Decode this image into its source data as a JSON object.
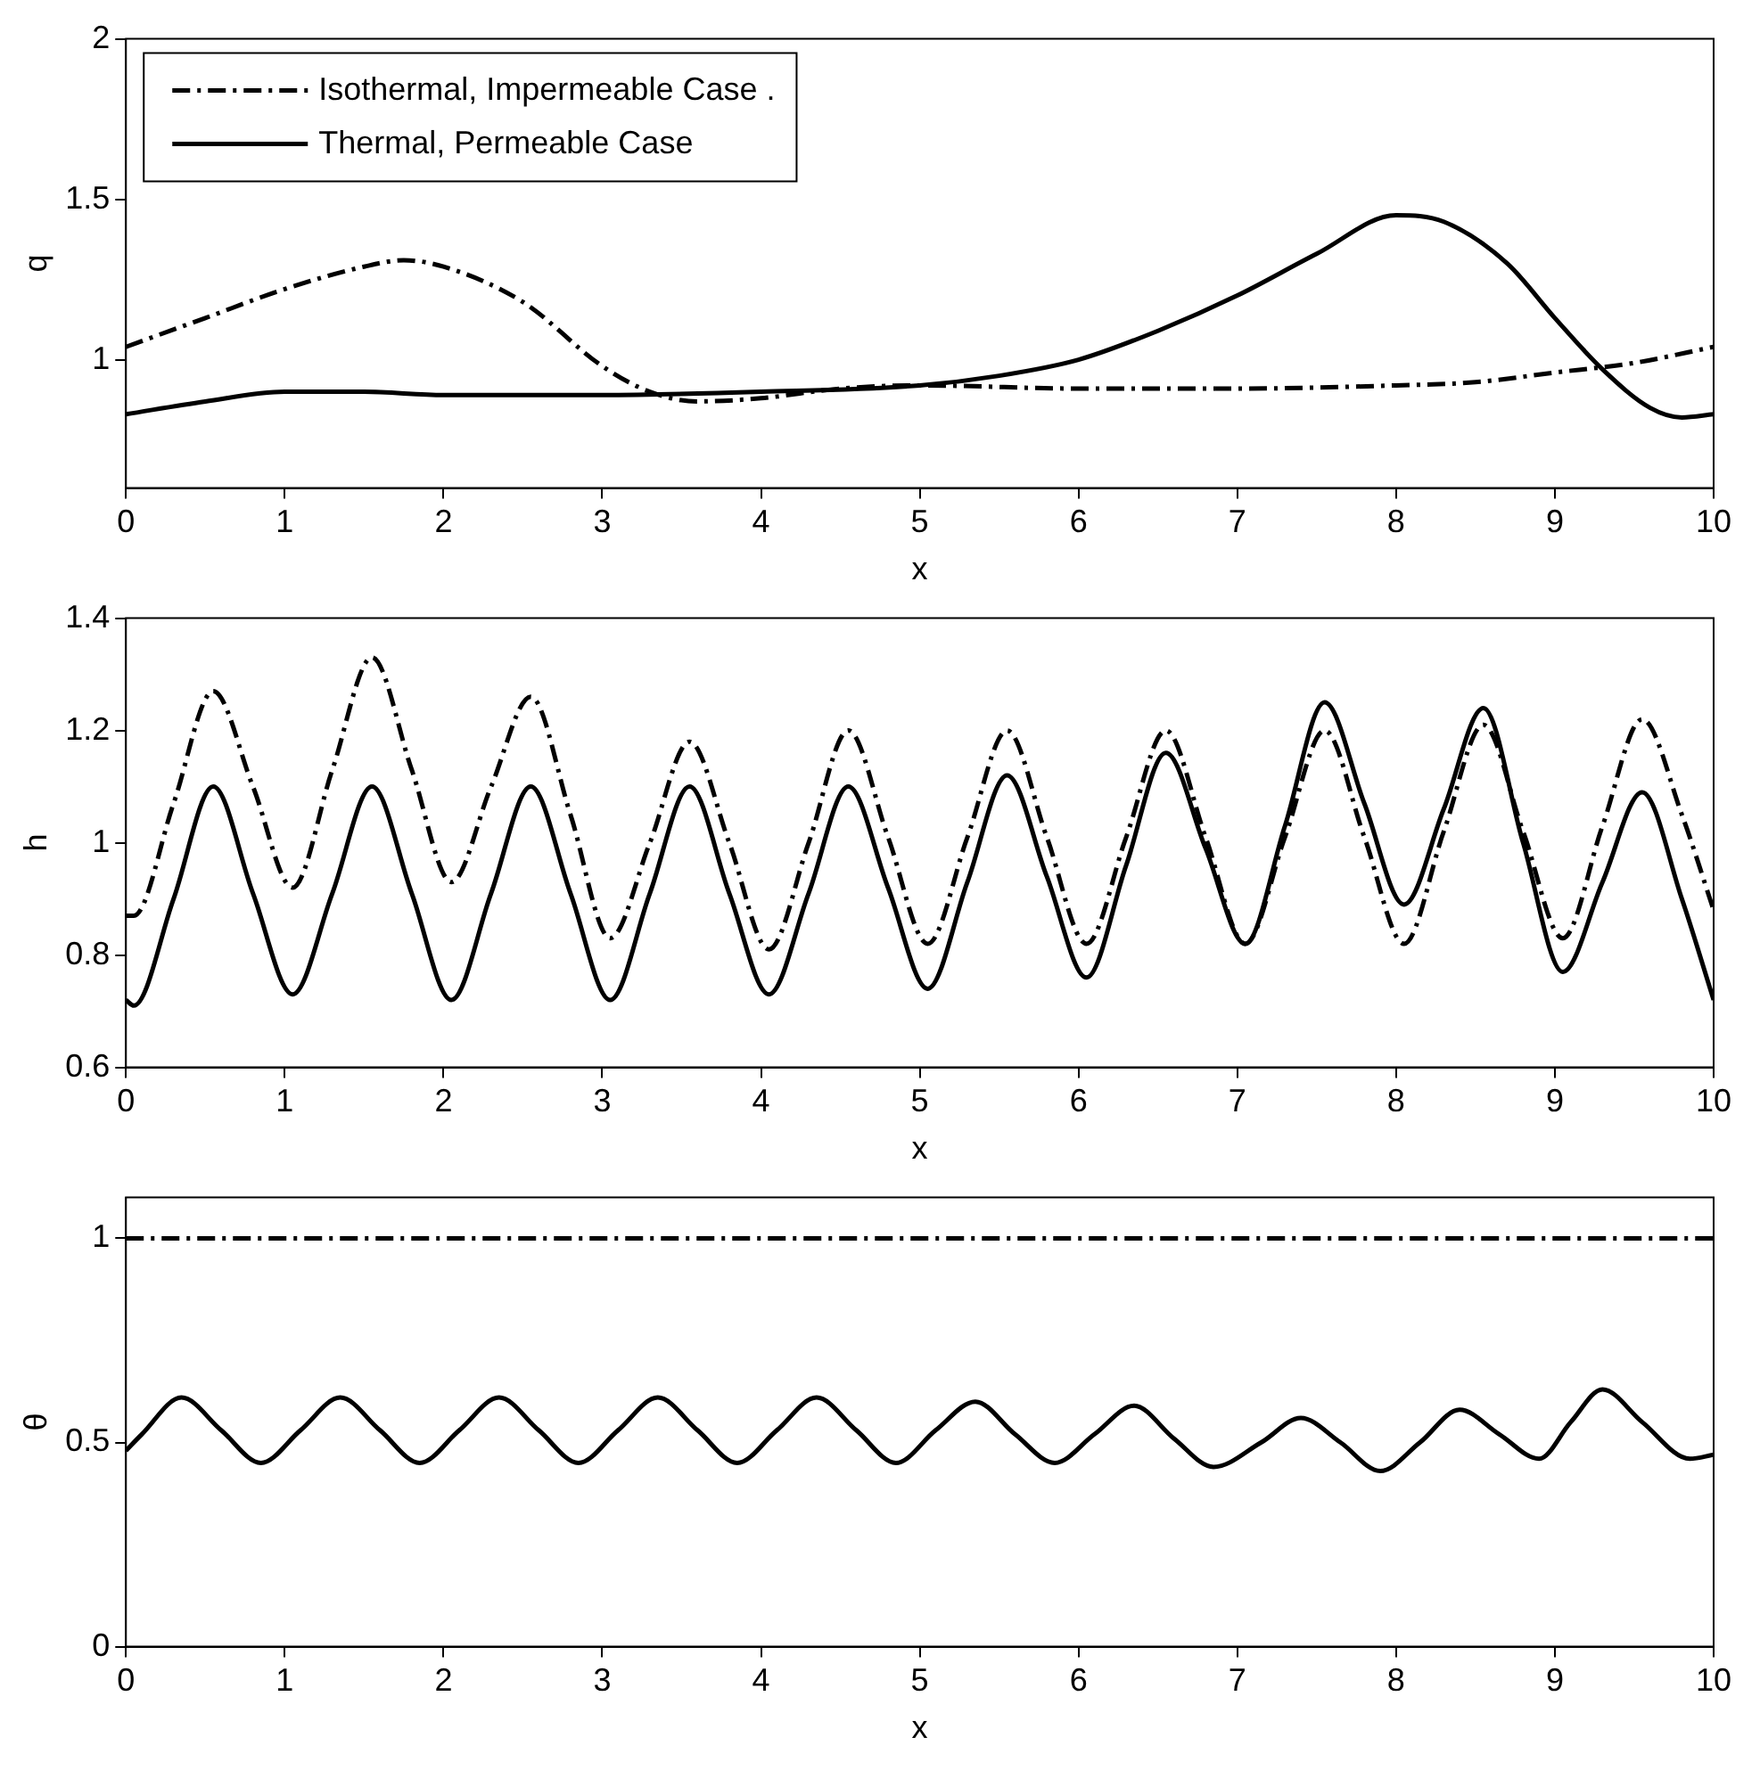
{
  "chart_data": [
    {
      "type": "line",
      "xlabel": "x",
      "ylabel": "q",
      "xlim": [
        0,
        10
      ],
      "ylim": [
        0.6,
        2
      ],
      "xticks": [
        0,
        1,
        2,
        3,
        4,
        5,
        6,
        7,
        8,
        9,
        10
      ],
      "yticks": [
        1,
        1.5,
        2
      ],
      "grid": false,
      "legend": "top left",
      "series": [
        {
          "name": "Isothermal, Impermeable Case .",
          "color": "#000000",
          "line_style": "dashed",
          "x": [
            0,
            0.5,
            1,
            1.5,
            1.75,
            2,
            2.5,
            3,
            3.3,
            3.6,
            4,
            4.5,
            5,
            6,
            7,
            8,
            8.5,
            9,
            9.5,
            10
          ],
          "values": [
            1.04,
            1.13,
            1.22,
            1.29,
            1.31,
            1.29,
            1.18,
            0.98,
            0.9,
            0.87,
            0.88,
            0.91,
            0.92,
            0.91,
            0.91,
            0.92,
            0.93,
            0.96,
            0.99,
            1.04
          ]
        },
        {
          "name": "Thermal, Permeable Case",
          "color": "#000000",
          "line_style": "solid",
          "x": [
            0,
            0.5,
            1,
            1.5,
            2,
            3,
            4,
            5,
            5.5,
            6,
            6.5,
            7,
            7.5,
            8,
            8.3,
            8.7,
            9,
            9.3,
            9.6,
            9.8,
            10
          ],
          "values": [
            0.83,
            0.87,
            0.9,
            0.9,
            0.89,
            0.89,
            0.9,
            0.92,
            0.95,
            1.0,
            1.09,
            1.2,
            1.33,
            1.45,
            1.43,
            1.3,
            1.13,
            0.97,
            0.85,
            0.82,
            0.83
          ]
        }
      ]
    },
    {
      "type": "line",
      "xlabel": "x",
      "ylabel": "h",
      "xlim": [
        0,
        10
      ],
      "ylim": [
        0.6,
        1.4
      ],
      "xticks": [
        0,
        1,
        2,
        3,
        4,
        5,
        6,
        7,
        8,
        9,
        10
      ],
      "yticks": [
        0.6,
        0.8,
        1,
        1.2,
        1.4
      ],
      "grid": false,
      "series": [
        {
          "color": "#000000",
          "line_style": "dashed",
          "x": [
            0,
            0.05,
            0.3,
            0.55,
            0.8,
            1.05,
            1.3,
            1.55,
            1.8,
            2.05,
            2.3,
            2.55,
            2.8,
            3.05,
            3.3,
            3.55,
            3.8,
            4.05,
            4.3,
            4.55,
            4.8,
            5.05,
            5.3,
            5.55,
            5.8,
            6.05,
            6.3,
            6.55,
            6.8,
            7.05,
            7.3,
            7.55,
            7.8,
            8.05,
            8.3,
            8.55,
            8.8,
            9.05,
            9.3,
            9.55,
            9.8,
            10
          ],
          "values": [
            0.87,
            0.87,
            1.07,
            1.27,
            1.1,
            0.92,
            1.13,
            1.33,
            1.13,
            0.93,
            1.1,
            1.26,
            1.05,
            0.83,
            1.0,
            1.18,
            1.0,
            0.81,
            1.0,
            1.2,
            1.01,
            0.82,
            1.01,
            1.2,
            1.01,
            0.82,
            1.01,
            1.2,
            1.01,
            0.82,
            1.01,
            1.2,
            1.01,
            0.82,
            1.02,
            1.21,
            1.02,
            0.83,
            1.03,
            1.22,
            1.05,
            0.88
          ]
        },
        {
          "color": "#000000",
          "line_style": "solid",
          "x": [
            0,
            0.05,
            0.3,
            0.55,
            0.8,
            1.05,
            1.3,
            1.55,
            1.8,
            2.05,
            2.3,
            2.55,
            2.8,
            3.05,
            3.3,
            3.55,
            3.8,
            4.05,
            4.3,
            4.55,
            4.8,
            5.05,
            5.3,
            5.55,
            5.8,
            6.05,
            6.3,
            6.55,
            6.8,
            7.05,
            7.3,
            7.55,
            7.8,
            8.05,
            8.3,
            8.55,
            8.8,
            9.05,
            9.3,
            9.55,
            9.8,
            10
          ],
          "values": [
            0.72,
            0.71,
            0.9,
            1.1,
            0.91,
            0.73,
            0.91,
            1.1,
            0.91,
            0.72,
            0.91,
            1.1,
            0.91,
            0.72,
            0.91,
            1.1,
            0.91,
            0.73,
            0.91,
            1.1,
            0.92,
            0.74,
            0.93,
            1.12,
            0.94,
            0.76,
            0.96,
            1.16,
            0.99,
            0.82,
            1.03,
            1.25,
            1.07,
            0.89,
            1.06,
            1.24,
            1.0,
            0.77,
            0.93,
            1.09,
            0.9,
            0.72
          ]
        }
      ]
    },
    {
      "type": "line",
      "xlabel": "x",
      "ylabel": "θ",
      "xlim": [
        0,
        10
      ],
      "ylim": [
        0,
        1.1
      ],
      "xticks": [
        0,
        1,
        2,
        3,
        4,
        5,
        6,
        7,
        8,
        9,
        10
      ],
      "yticks": [
        0,
        0.5,
        1
      ],
      "grid": false,
      "series": [
        {
          "color": "#000000",
          "line_style": "dashed",
          "x": [
            0,
            10
          ],
          "values": [
            1,
            1
          ]
        },
        {
          "color": "#000000",
          "line_style": "solid",
          "x": [
            0,
            0.1,
            0.35,
            0.6,
            0.85,
            1.1,
            1.35,
            1.6,
            1.85,
            2.1,
            2.35,
            2.6,
            2.85,
            3.1,
            3.35,
            3.6,
            3.85,
            4.1,
            4.35,
            4.6,
            4.85,
            5.1,
            5.35,
            5.6,
            5.85,
            6.1,
            6.35,
            6.6,
            6.85,
            7.15,
            7.4,
            7.65,
            7.9,
            8.15,
            8.4,
            8.65,
            8.9,
            9.1,
            9.3,
            9.55,
            9.85,
            10
          ],
          "values": [
            0.48,
            0.52,
            0.61,
            0.53,
            0.45,
            0.53,
            0.61,
            0.53,
            0.45,
            0.53,
            0.61,
            0.53,
            0.45,
            0.53,
            0.61,
            0.53,
            0.45,
            0.53,
            0.61,
            0.53,
            0.45,
            0.53,
            0.6,
            0.52,
            0.45,
            0.52,
            0.59,
            0.51,
            0.44,
            0.5,
            0.56,
            0.5,
            0.43,
            0.5,
            0.58,
            0.52,
            0.46,
            0.55,
            0.63,
            0.55,
            0.46,
            0.47
          ]
        }
      ]
    }
  ]
}
